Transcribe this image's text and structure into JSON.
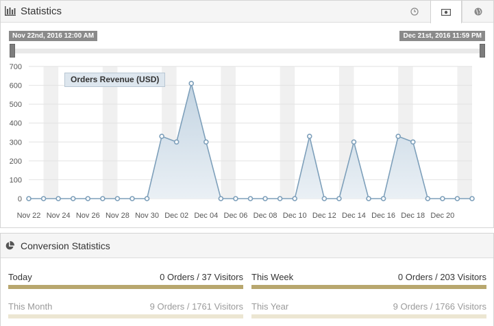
{
  "header": {
    "title": "Statistics",
    "tabs": [
      {
        "icon": "clock-icon",
        "active": false
      },
      {
        "icon": "money-icon",
        "active": true
      },
      {
        "icon": "globe-icon",
        "active": false
      }
    ]
  },
  "range": {
    "start_label": "Nov 22nd, 2016 12:00 AM",
    "end_label": "Dec 21st, 2016 11:59 PM"
  },
  "chart_data": {
    "type": "area",
    "series": [
      {
        "name": "Orders Revenue (USD)",
        "values": [
          0,
          0,
          0,
          0,
          0,
          0,
          0,
          0,
          0,
          330,
          300,
          610,
          300,
          0,
          0,
          0,
          0,
          0,
          0,
          330,
          0,
          0,
          300,
          0,
          0,
          330,
          300,
          0,
          0,
          0,
          0
        ]
      }
    ],
    "x_tick_labels": [
      "Nov 22",
      "Nov 24",
      "Nov 26",
      "Nov 28",
      "Nov 30",
      "Dec 02",
      "Dec 04",
      "Dec 06",
      "Dec 08",
      "Dec 10",
      "Dec 12",
      "Dec 14",
      "Dec 16",
      "Dec 18",
      "Dec 20"
    ],
    "y_ticks": [
      0,
      100,
      200,
      300,
      400,
      500,
      600,
      700
    ],
    "ylim": [
      0,
      700
    ],
    "grid": true,
    "legend_placement": "top-left",
    "colors": {
      "line": "#7d9fba",
      "fill_top": "#c3d4e2",
      "fill_bottom": "#eaf0f5",
      "band": "#f0f0f0"
    }
  },
  "conversion": {
    "title": "Conversion Statistics",
    "stats": [
      {
        "label": "Today",
        "value": "0 Orders / 37 Visitors"
      },
      {
        "label": "This Week",
        "value": "0 Orders / 203 Visitors"
      },
      {
        "label": "This Month",
        "value": "9 Orders / 1761 Visitors"
      },
      {
        "label": "This Year",
        "value": "9 Orders / 1766 Visitors"
      }
    ],
    "bar_color": "#b8a76e"
  }
}
